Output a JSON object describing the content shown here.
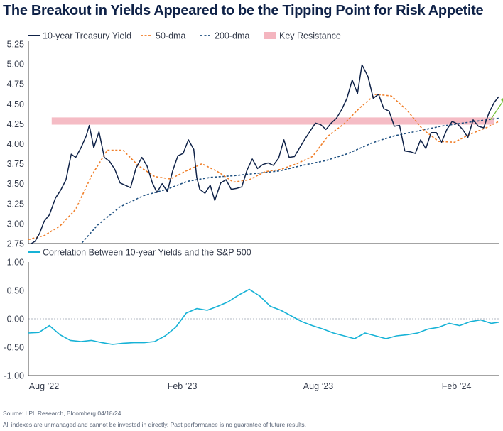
{
  "title": "The Breakout in Yields Appeared to be the Tipping Point for Risk Appetite",
  "footer": {
    "source": "Source: LPL Research, Bloomberg 04/18/24",
    "disclaimer": "All indexes are unmanaged and cannot be invested in directly. Past performance is no guarantee of future results."
  },
  "colors": {
    "yield": "#0f2248",
    "dma50": "#f07f2a",
    "dma200": "#1d4f80",
    "resistance": "#f4b5bf",
    "correlation": "#16b2d6",
    "arrow": "#6fbd2e"
  },
  "chart_data": [
    {
      "type": "line",
      "legend": [
        "10-year Treasury Yield",
        "50-dma",
        "200-dma",
        "Key Resistance"
      ],
      "xlim": [
        "2022-08-01",
        "2024-04-18"
      ],
      "ylim": [
        2.75,
        5.25
      ],
      "yticks": [
        "5.25",
        "5.00",
        "4.75",
        "4.50",
        "4.25",
        "4.00",
        "3.75",
        "3.50",
        "3.25",
        "3.00",
        "2.75"
      ],
      "key_resistance": {
        "from": "2022-09-01",
        "to": "2024-04-12",
        "low": 4.24,
        "high": 4.33
      },
      "series": [
        {
          "name": "10-year Treasury Yield",
          "x": [
            "2022-08-01",
            "2022-08-05",
            "2022-08-10",
            "2022-08-16",
            "2022-08-22",
            "2022-08-29",
            "2022-09-06",
            "2022-09-13",
            "2022-09-20",
            "2022-09-27",
            "2022-10-03",
            "2022-10-10",
            "2022-10-17",
            "2022-10-21",
            "2022-10-27",
            "2022-11-03",
            "2022-11-10",
            "2022-11-17",
            "2022-11-24",
            "2022-12-01",
            "2022-12-08",
            "2022-12-15",
            "2022-12-22",
            "2022-12-30",
            "2023-01-06",
            "2023-01-13",
            "2023-01-19",
            "2023-01-26",
            "2023-02-02",
            "2023-02-09",
            "2023-02-16",
            "2023-02-23",
            "2023-03-02",
            "2023-03-09",
            "2023-03-13",
            "2023-03-17",
            "2023-03-24",
            "2023-03-31",
            "2023-04-06",
            "2023-04-14",
            "2023-04-21",
            "2023-04-28",
            "2023-05-05",
            "2023-05-12",
            "2023-05-19",
            "2023-05-26",
            "2023-06-02",
            "2023-06-09",
            "2023-06-16",
            "2023-06-23",
            "2023-06-30",
            "2023-07-07",
            "2023-07-14",
            "2023-07-21",
            "2023-07-28",
            "2023-08-04",
            "2023-08-11",
            "2023-08-18",
            "2023-08-25",
            "2023-09-01",
            "2023-09-08",
            "2023-09-15",
            "2023-09-22",
            "2023-09-29",
            "2023-10-06",
            "2023-10-13",
            "2023-10-19",
            "2023-10-27",
            "2023-11-03",
            "2023-11-10",
            "2023-11-17",
            "2023-11-24",
            "2023-12-01",
            "2023-12-08",
            "2023-12-15",
            "2023-12-22",
            "2023-12-29",
            "2024-01-05",
            "2024-01-12",
            "2024-01-19",
            "2024-01-26",
            "2024-02-02",
            "2024-02-09",
            "2024-02-16",
            "2024-02-23",
            "2024-03-01",
            "2024-03-08",
            "2024-03-15",
            "2024-03-22",
            "2024-03-29",
            "2024-04-05",
            "2024-04-12",
            "2024-04-18"
          ],
          "values": [
            2.62,
            2.75,
            2.78,
            2.88,
            3.03,
            3.11,
            3.32,
            3.42,
            3.55,
            3.87,
            3.83,
            3.95,
            4.1,
            4.23,
            3.95,
            4.15,
            3.83,
            3.78,
            3.68,
            3.51,
            3.48,
            3.45,
            3.69,
            3.83,
            3.72,
            3.51,
            3.39,
            3.5,
            3.4,
            3.66,
            3.85,
            3.88,
            4.05,
            3.93,
            3.58,
            3.43,
            3.38,
            3.48,
            3.29,
            3.51,
            3.55,
            3.43,
            3.44,
            3.46,
            3.67,
            3.81,
            3.69,
            3.74,
            3.76,
            3.73,
            3.82,
            4.05,
            3.83,
            3.84,
            3.95,
            4.06,
            4.16,
            4.26,
            4.24,
            4.18,
            4.26,
            4.32,
            4.43,
            4.57,
            4.8,
            4.63,
            4.99,
            4.84,
            4.57,
            4.62,
            4.44,
            4.41,
            4.22,
            4.23,
            3.91,
            3.9,
            3.88,
            4.05,
            3.94,
            4.14,
            4.14,
            4.02,
            4.18,
            4.28,
            4.25,
            4.18,
            4.08,
            4.3,
            4.22,
            4.2,
            4.39,
            4.52,
            4.59
          ]
        },
        {
          "name": "50-dma",
          "x": [
            "2022-08-01",
            "2022-08-22",
            "2022-09-12",
            "2022-10-03",
            "2022-10-24",
            "2022-11-14",
            "2022-12-05",
            "2022-12-26",
            "2023-01-16",
            "2023-02-06",
            "2023-02-27",
            "2023-03-20",
            "2023-04-10",
            "2023-05-01",
            "2023-05-22",
            "2023-06-12",
            "2023-07-03",
            "2023-07-24",
            "2023-08-14",
            "2023-09-04",
            "2023-09-25",
            "2023-10-16",
            "2023-11-06",
            "2023-11-27",
            "2023-12-18",
            "2024-01-08",
            "2024-01-29",
            "2024-02-19",
            "2024-03-11",
            "2024-04-01",
            "2024-04-18"
          ],
          "values": [
            2.8,
            2.85,
            2.97,
            3.18,
            3.6,
            3.92,
            3.92,
            3.72,
            3.59,
            3.56,
            3.66,
            3.75,
            3.65,
            3.52,
            3.55,
            3.65,
            3.68,
            3.75,
            3.84,
            4.1,
            4.25,
            4.45,
            4.62,
            4.6,
            4.42,
            4.18,
            4.03,
            4.02,
            4.12,
            4.2,
            4.28
          ]
        },
        {
          "name": "200-dma",
          "x": [
            "2022-10-01",
            "2022-11-01",
            "2022-12-01",
            "2023-01-01",
            "2023-02-01",
            "2023-03-01",
            "2023-04-01",
            "2023-05-01",
            "2023-06-01",
            "2023-07-01",
            "2023-08-01",
            "2023-09-01",
            "2023-10-01",
            "2023-11-01",
            "2023-12-01",
            "2024-01-01",
            "2024-02-01",
            "2024-03-01",
            "2024-04-18"
          ],
          "values": [
            2.65,
            2.98,
            3.21,
            3.35,
            3.43,
            3.53,
            3.58,
            3.6,
            3.63,
            3.66,
            3.73,
            3.79,
            3.88,
            4.01,
            4.1,
            4.16,
            4.22,
            4.26,
            4.32
          ]
        }
      ]
    },
    {
      "type": "line",
      "legend": [
        "Correlation Between 10-year Yields and the S&P 500"
      ],
      "xlim": [
        "2022-08-01",
        "2024-04-18"
      ],
      "ylim": [
        -1.0,
        1.0
      ],
      "yticks": [
        "1.00",
        "0.50",
        "0.00",
        "-0.50",
        "-1.00"
      ],
      "xticks": [
        "Aug ’22",
        "Feb ’23",
        "Aug ’23",
        "Feb ’24"
      ],
      "xtick_dates": [
        "2022-08-01",
        "2023-02-01",
        "2023-08-01",
        "2024-02-01"
      ],
      "series": [
        {
          "name": "Correlation Between 10-year Yields and the S&P 500",
          "x": [
            "2022-08-01",
            "2022-08-15",
            "2022-08-29",
            "2022-09-12",
            "2022-09-26",
            "2022-10-10",
            "2022-10-24",
            "2022-11-07",
            "2022-11-21",
            "2022-12-05",
            "2022-12-19",
            "2023-01-02",
            "2023-01-16",
            "2023-01-30",
            "2023-02-13",
            "2023-02-27",
            "2023-03-13",
            "2023-03-27",
            "2023-04-10",
            "2023-04-24",
            "2023-05-08",
            "2023-05-22",
            "2023-06-05",
            "2023-06-19",
            "2023-07-03",
            "2023-07-17",
            "2023-07-31",
            "2023-08-14",
            "2023-08-28",
            "2023-09-11",
            "2023-09-25",
            "2023-10-09",
            "2023-10-23",
            "2023-11-06",
            "2023-11-20",
            "2023-12-04",
            "2023-12-18",
            "2024-01-01",
            "2024-01-15",
            "2024-01-29",
            "2024-02-12",
            "2024-02-26",
            "2024-03-11",
            "2024-03-25",
            "2024-04-08",
            "2024-04-18"
          ],
          "values": [
            -0.25,
            -0.24,
            -0.12,
            -0.28,
            -0.38,
            -0.4,
            -0.38,
            -0.42,
            -0.45,
            -0.43,
            -0.42,
            -0.42,
            -0.4,
            -0.3,
            -0.15,
            0.1,
            0.18,
            0.15,
            0.22,
            0.3,
            0.42,
            0.52,
            0.4,
            0.22,
            0.15,
            0.05,
            -0.05,
            -0.12,
            -0.18,
            -0.25,
            -0.3,
            -0.35,
            -0.25,
            -0.3,
            -0.35,
            -0.3,
            -0.28,
            -0.25,
            -0.18,
            -0.15,
            -0.08,
            -0.12,
            -0.05,
            -0.02,
            -0.08,
            -0.06
          ]
        }
      ]
    }
  ]
}
